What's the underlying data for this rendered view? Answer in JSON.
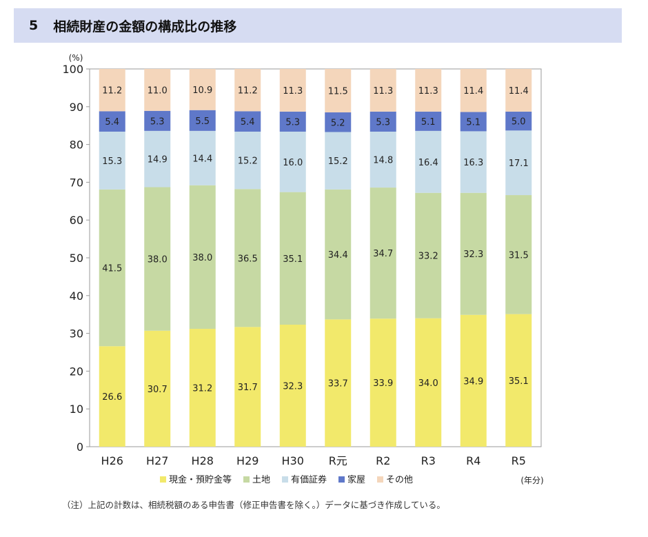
{
  "header": {
    "section_number": "5",
    "title": "相続財産の金額の構成比の推移"
  },
  "chart_data": {
    "type": "bar",
    "stacked": true,
    "normalized": true,
    "title": "相続財産の金額の構成比の推移",
    "ylabel": "(%)",
    "xlabel": "(年分)",
    "ylim": [
      0,
      100
    ],
    "yticks": [
      0,
      10,
      20,
      30,
      40,
      50,
      60,
      70,
      80,
      90,
      100
    ],
    "grid": false,
    "legend_position": "bottom",
    "categories": [
      "H26",
      "H27",
      "H28",
      "H29",
      "H30",
      "R元",
      "R2",
      "R3",
      "R4",
      "R5"
    ],
    "series": [
      {
        "name": "現金・預貯金等",
        "color": "#f2e96b",
        "values": [
          26.6,
          30.7,
          31.2,
          31.7,
          32.3,
          33.7,
          33.9,
          34.0,
          34.9,
          35.1
        ]
      },
      {
        "name": "土地",
        "color": "#c6d9a3",
        "values": [
          41.5,
          38.0,
          38.0,
          36.5,
          35.1,
          34.4,
          34.7,
          33.2,
          32.3,
          31.5
        ]
      },
      {
        "name": "有価証券",
        "color": "#c8dde9",
        "values": [
          15.3,
          14.9,
          14.4,
          15.2,
          16.0,
          15.2,
          14.8,
          16.4,
          16.3,
          17.1
        ]
      },
      {
        "name": "家屋",
        "color": "#5f78c9",
        "values": [
          5.4,
          5.3,
          5.5,
          5.4,
          5.3,
          5.2,
          5.3,
          5.1,
          5.1,
          5.0
        ]
      },
      {
        "name": "その他",
        "color": "#f4d6bb",
        "values": [
          11.2,
          11.0,
          10.9,
          11.2,
          11.3,
          11.5,
          11.3,
          11.3,
          11.4,
          11.4
        ]
      }
    ]
  },
  "note": "（注）上記の計数は、相続税額のある申告書（修正申告書を除く。）データに基づき作成している。"
}
